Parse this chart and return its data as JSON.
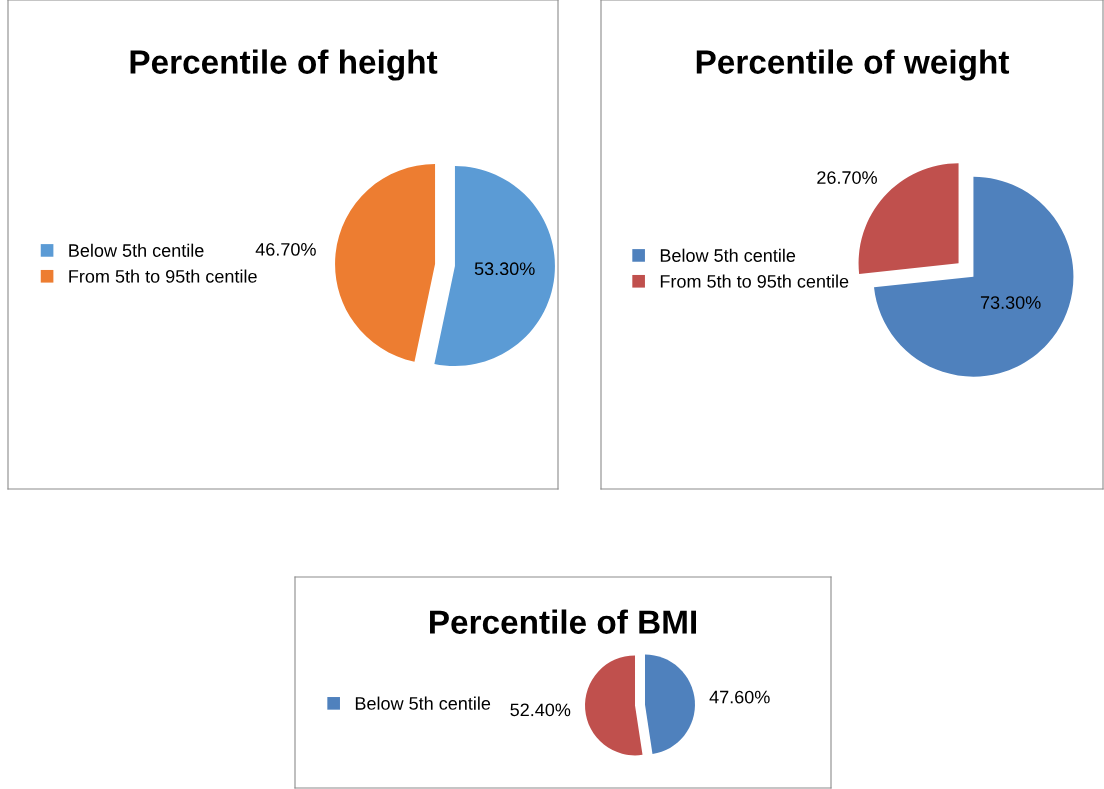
{
  "chart_data": [
    {
      "type": "pie",
      "title": "Percentile of height",
      "categories": [
        "Below 5th centile",
        "From 5th to 95th centile"
      ],
      "values": [
        53.3,
        46.7
      ],
      "colors": [
        "#5b9bd5",
        "#ed7d31"
      ],
      "value_labels": [
        "53.30%",
        "46.70%"
      ],
      "legend": "left"
    },
    {
      "type": "pie",
      "title": "Percentile of weight",
      "categories": [
        "Below 5th centile",
        "From 5th to 95th centile"
      ],
      "values": [
        73.3,
        26.7
      ],
      "colors": [
        "#4f81bd",
        "#c0504d"
      ],
      "value_labels": [
        "73.30%",
        "26.70%"
      ],
      "legend": "left"
    },
    {
      "type": "pie",
      "title": "Percentile of BMI",
      "categories": [
        "Below 5th centile",
        null
      ],
      "values": [
        47.6,
        52.4
      ],
      "colors": [
        "#4f81bd",
        "#c0504d"
      ],
      "value_labels": [
        "47.60%",
        "52.40%"
      ],
      "legend": "left"
    }
  ]
}
